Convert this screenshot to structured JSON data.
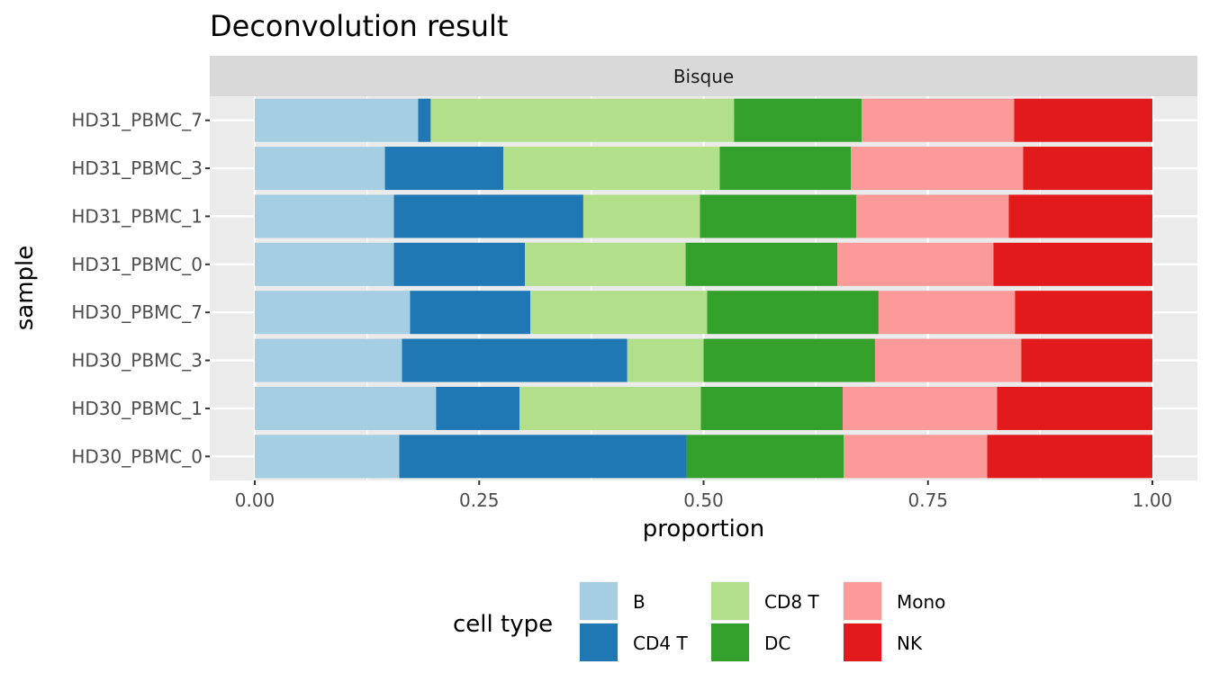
{
  "chart_data": {
    "type": "bar",
    "orientation": "horizontal",
    "stacked": true,
    "title": "Deconvolution result",
    "facet": "Bisque",
    "xlabel": "proportion",
    "ylabel": "sample",
    "xlim": [
      0,
      1
    ],
    "xticks": [
      "0.00",
      "0.25",
      "0.50",
      "0.75",
      "1.00"
    ],
    "grid": true,
    "legend_title": "cell type",
    "legend_position": "bottom",
    "categories": [
      "HD31_PBMC_7",
      "HD31_PBMC_3",
      "HD31_PBMC_1",
      "HD31_PBMC_0",
      "HD30_PBMC_7",
      "HD30_PBMC_3",
      "HD30_PBMC_1",
      "HD30_PBMC_0"
    ],
    "series": [
      {
        "name": "B",
        "color": "#A6CEE3",
        "values": [
          0.182,
          0.145,
          0.155,
          0.155,
          0.173,
          0.164,
          0.202,
          0.161
        ]
      },
      {
        "name": "CD4 T",
        "color": "#1F78B4",
        "values": [
          0.014,
          0.132,
          0.211,
          0.146,
          0.134,
          0.251,
          0.093,
          0.32
        ]
      },
      {
        "name": "CD8 T",
        "color": "#B2DF8A",
        "values": [
          0.338,
          0.241,
          0.13,
          0.179,
          0.197,
          0.085,
          0.202,
          0.0
        ]
      },
      {
        "name": "DC",
        "color": "#33A02C",
        "values": [
          0.142,
          0.146,
          0.174,
          0.169,
          0.191,
          0.191,
          0.158,
          0.175
        ]
      },
      {
        "name": "Mono",
        "color": "#FB9A99",
        "values": [
          0.17,
          0.192,
          0.17,
          0.174,
          0.152,
          0.163,
          0.172,
          0.16
        ]
      },
      {
        "name": "NK",
        "color": "#E31A1C",
        "values": [
          0.154,
          0.144,
          0.16,
          0.177,
          0.153,
          0.146,
          0.173,
          0.184
        ]
      }
    ]
  }
}
